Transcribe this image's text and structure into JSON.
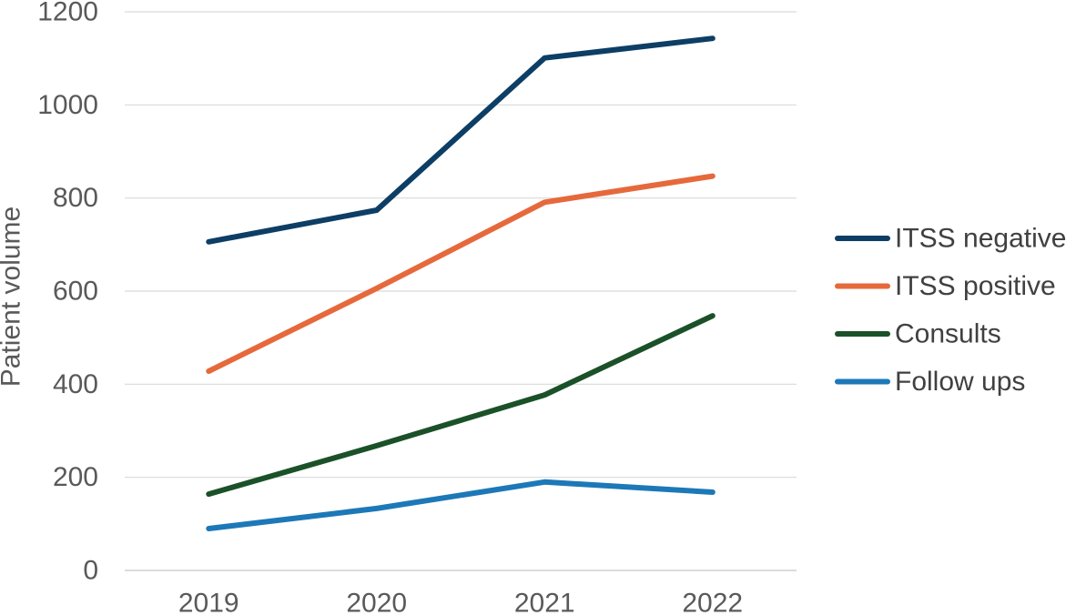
{
  "chart_data": {
    "type": "line",
    "title": "",
    "xlabel": "",
    "ylabel": "Patient volume",
    "categories": [
      "2019",
      "2020",
      "2021",
      "2022"
    ],
    "ylim": [
      0,
      1200
    ],
    "yticks": [
      0,
      200,
      400,
      600,
      800,
      1000,
      1200
    ],
    "grid": true,
    "legend_position": "right",
    "series": [
      {
        "name": "ITSS negative",
        "color": "#0d3e65",
        "values": [
          706,
          774,
          1101,
          1143
        ]
      },
      {
        "name": "ITSS positive",
        "color": "#e6693c",
        "values": [
          428,
          606,
          791,
          847
        ]
      },
      {
        "name": "Consults",
        "color": "#1b5128",
        "values": [
          164,
          268,
          377,
          547
        ]
      },
      {
        "name": "Follow ups",
        "color": "#1d78b8",
        "values": [
          90,
          133,
          190,
          168
        ]
      }
    ]
  }
}
